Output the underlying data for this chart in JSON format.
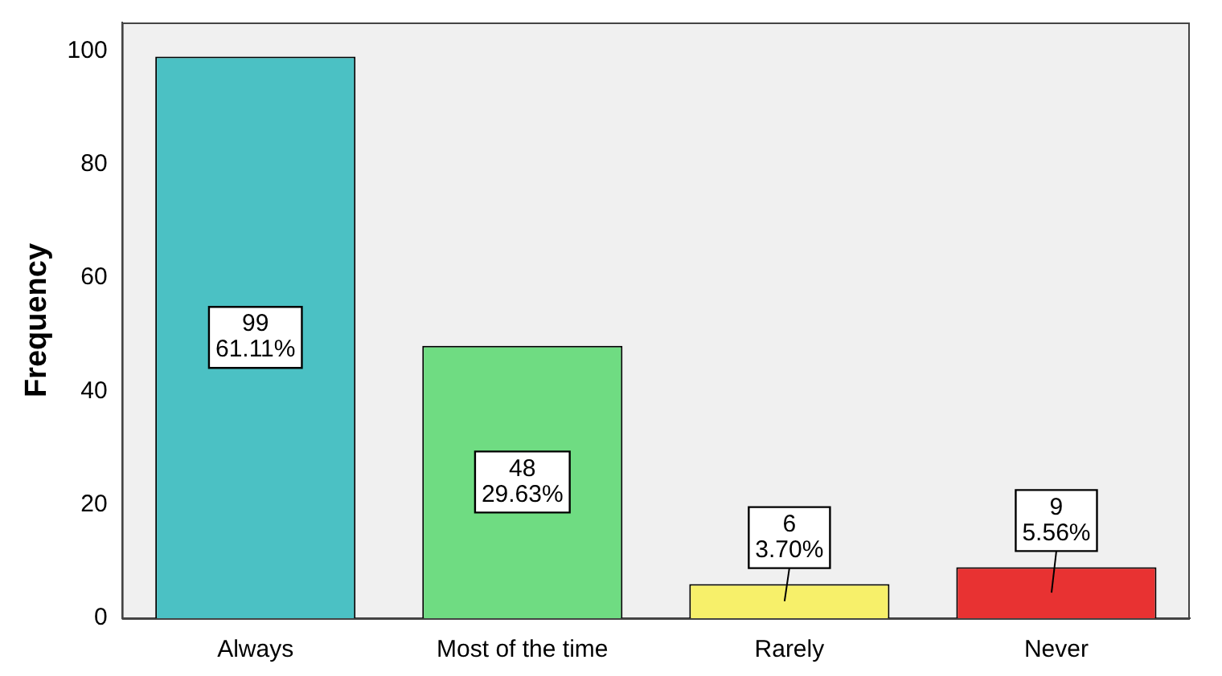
{
  "chart_data": {
    "type": "bar",
    "ylabel": "Frequency",
    "categories": [
      "Always",
      "Most of the time",
      "Rarely",
      "Never"
    ],
    "values": [
      99,
      48,
      6,
      9
    ],
    "colors": [
      "#4bc1c4",
      "#6fdc82",
      "#f7f06a",
      "#e83232"
    ],
    "value_labels": [
      "99\n61.11%",
      "48\n29.63%",
      "6\n3.70%",
      "9\n5.56%"
    ],
    "ylim": [
      0,
      105
    ],
    "yticks": [
      0,
      20,
      40,
      60,
      80,
      100
    ],
    "grid": false,
    "legend": false
  }
}
